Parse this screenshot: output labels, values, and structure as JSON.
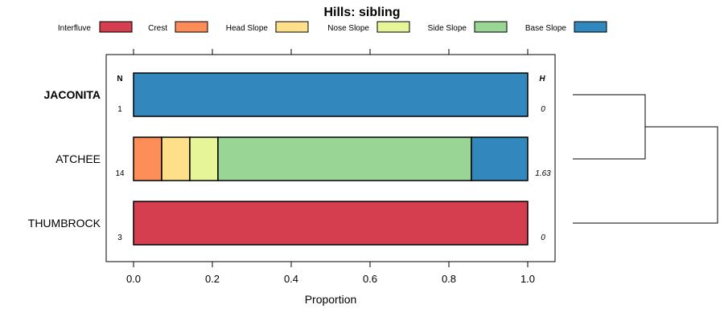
{
  "chart_data": {
    "type": "bar",
    "stacked": true,
    "orientation": "horizontal",
    "title": "Hills: sibling",
    "xlabel": "Proportion",
    "ylabel": "",
    "xlim": [
      0,
      1
    ],
    "x_ticks": [
      "0.0",
      "0.2",
      "0.4",
      "0.6",
      "0.8",
      "1.0"
    ],
    "x_tick_values": [
      0,
      0.2,
      0.4,
      0.6,
      0.8,
      1.0
    ],
    "legend_position": "top",
    "categories": [
      "JACONITA",
      "ATCHEE",
      "THUMBROCK"
    ],
    "category_bold": [
      true,
      false,
      false
    ],
    "series": [
      {
        "name": "Interfluve",
        "color": "#d53e4f",
        "values": [
          0,
          0,
          1.0
        ]
      },
      {
        "name": "Crest",
        "color": "#fc8d59",
        "values": [
          0,
          0.0714,
          0
        ]
      },
      {
        "name": "Head Slope",
        "color": "#fee08b",
        "values": [
          0,
          0.0714,
          0
        ]
      },
      {
        "name": "Nose Slope",
        "color": "#e6f598",
        "values": [
          0,
          0.0714,
          0
        ]
      },
      {
        "name": "Side Slope",
        "color": "#99d594",
        "values": [
          0,
          0.6429,
          0
        ]
      },
      {
        "name": "Base Slope",
        "color": "#3288bd",
        "values": [
          1.0,
          0.1429,
          0
        ]
      }
    ],
    "n_header": "N",
    "h_header": "H",
    "n_values": [
      "1",
      "14",
      "3"
    ],
    "h_values": [
      "0",
      "1.63",
      "0"
    ],
    "dendrogram": {
      "merges": [
        {
          "left": "JACONITA",
          "right": "ATCHEE",
          "height": 0.5
        },
        {
          "left": "cluster-1",
          "right": "THUMBROCK",
          "height": 1.0
        }
      ]
    }
  }
}
